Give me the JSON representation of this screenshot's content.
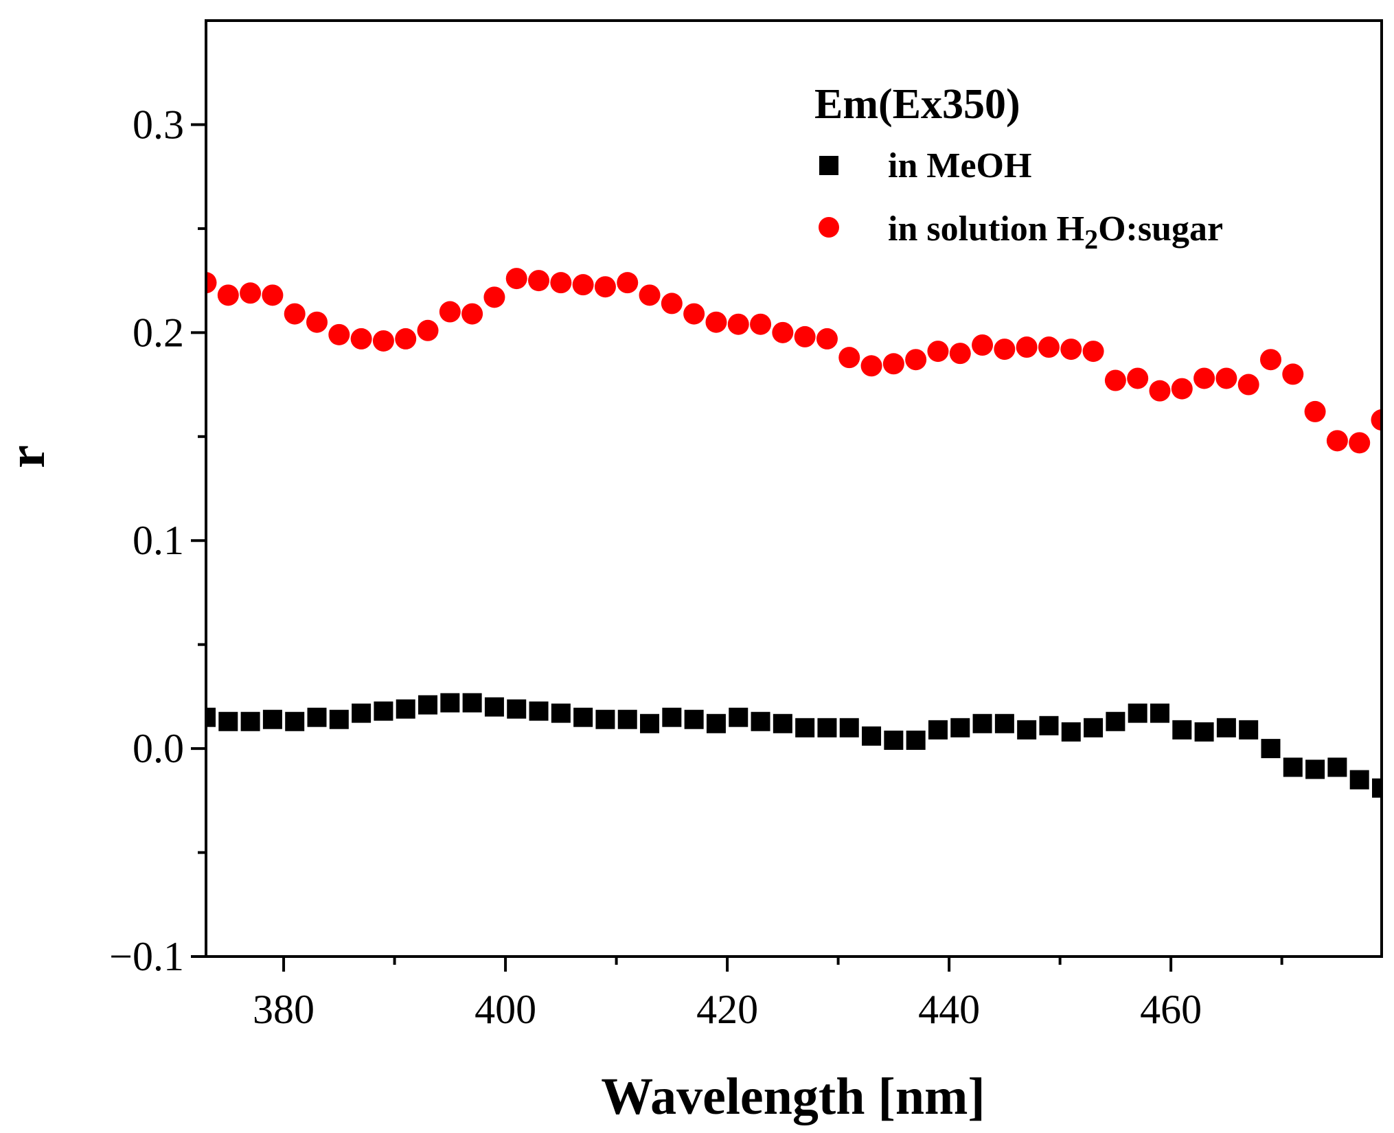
{
  "chart_data": {
    "type": "scatter",
    "xlabel": "Wavelength [nm]",
    "ylabel": "r",
    "xlim": [
      373,
      479
    ],
    "ylim": [
      -0.1,
      0.35
    ],
    "xticks": [
      380,
      400,
      420,
      440,
      460
    ],
    "xticks_minor": [
      390,
      410,
      430,
      450,
      470
    ],
    "yticks": [
      -0.1,
      0.0,
      0.1,
      0.2,
      0.3
    ],
    "ytick_labels": [
      "−0.1",
      "0.0",
      "0.1",
      "0.2",
      "0.3"
    ],
    "yticks_minor": [
      -0.05,
      0.05,
      0.15,
      0.25
    ],
    "grid": false,
    "legend": {
      "title": "Em(Ex350)",
      "placement": "top-right",
      "entries": [
        {
          "series": 0,
          "label": "in MeOH"
        },
        {
          "series": 1,
          "label_prefix": "in solution H",
          "label_sub": "2",
          "label_suffix": "O:sugar"
        }
      ]
    },
    "series": [
      {
        "name": "in MeOH",
        "marker": "square",
        "color": "#000000",
        "x": [
          373,
          375,
          377,
          379,
          381,
          383,
          385,
          387,
          389,
          391,
          393,
          395,
          397,
          399,
          401,
          403,
          405,
          407,
          409,
          411,
          413,
          415,
          417,
          419,
          421,
          423,
          425,
          427,
          429,
          431,
          433,
          435,
          437,
          439,
          441,
          443,
          445,
          447,
          449,
          451,
          453,
          455,
          457,
          459,
          461,
          463,
          465,
          467,
          469,
          471,
          473,
          475,
          477,
          479
        ],
        "y": [
          0.015,
          0.013,
          0.013,
          0.014,
          0.013,
          0.015,
          0.014,
          0.017,
          0.018,
          0.019,
          0.021,
          0.022,
          0.022,
          0.02,
          0.019,
          0.018,
          0.017,
          0.015,
          0.014,
          0.014,
          0.012,
          0.015,
          0.014,
          0.012,
          0.015,
          0.013,
          0.012,
          0.01,
          0.01,
          0.01,
          0.006,
          0.004,
          0.004,
          0.009,
          0.01,
          0.012,
          0.012,
          0.009,
          0.011,
          0.008,
          0.01,
          0.013,
          0.017,
          0.017,
          0.009,
          0.008,
          0.01,
          0.009,
          0.0,
          -0.009,
          -0.01,
          -0.009,
          -0.015,
          -0.019
        ]
      },
      {
        "name": "in solution H2O:sugar",
        "marker": "circle",
        "color": "#ff0000",
        "x": [
          373,
          375,
          377,
          379,
          381,
          383,
          385,
          387,
          389,
          391,
          393,
          395,
          397,
          399,
          401,
          403,
          405,
          407,
          409,
          411,
          413,
          415,
          417,
          419,
          421,
          423,
          425,
          427,
          429,
          431,
          433,
          435,
          437,
          439,
          441,
          443,
          445,
          447,
          449,
          451,
          453,
          455,
          457,
          459,
          461,
          463,
          465,
          467,
          469,
          471,
          473,
          475,
          477,
          479
        ],
        "y": [
          0.224,
          0.218,
          0.219,
          0.218,
          0.209,
          0.205,
          0.199,
          0.197,
          0.196,
          0.197,
          0.201,
          0.21,
          0.209,
          0.217,
          0.226,
          0.225,
          0.224,
          0.223,
          0.222,
          0.224,
          0.218,
          0.214,
          0.209,
          0.205,
          0.204,
          0.204,
          0.2,
          0.198,
          0.197,
          0.188,
          0.184,
          0.185,
          0.187,
          0.191,
          0.19,
          0.194,
          0.192,
          0.193,
          0.193,
          0.192,
          0.191,
          0.177,
          0.178,
          0.172,
          0.173,
          0.178,
          0.178,
          0.175,
          0.187,
          0.18,
          0.162,
          0.148,
          0.147,
          0.158
        ]
      }
    ]
  }
}
